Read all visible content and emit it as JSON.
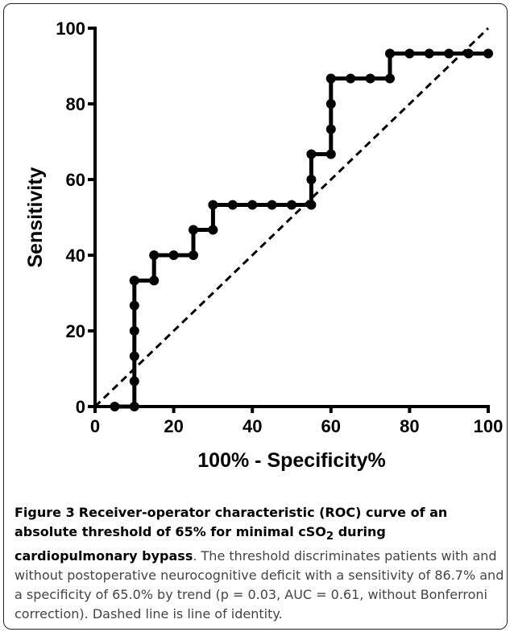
{
  "chart_data": {
    "type": "line",
    "title": "",
    "xlabel": "100% - Specificity%",
    "ylabel": "Sensitivity",
    "xlim": [
      0,
      100
    ],
    "ylim": [
      0,
      100
    ],
    "xticks": [
      "0",
      "20",
      "40",
      "60",
      "80",
      "100"
    ],
    "yticks": [
      "0",
      "20",
      "40",
      "60",
      "80",
      "100"
    ],
    "grid": false,
    "series": [
      {
        "name": "",
        "style": "step-with-markers",
        "color": "#000000",
        "x": [
          5,
          10,
          10,
          10,
          10,
          10,
          10,
          10,
          15,
          15,
          20,
          25,
          25,
          30,
          30,
          35,
          40,
          45,
          50,
          55,
          55,
          55,
          60,
          60,
          60,
          60,
          60,
          65,
          70,
          75,
          75,
          80,
          85,
          90,
          95,
          100
        ],
        "y": [
          0,
          0,
          6.7,
          13.3,
          20,
          26.7,
          33.3,
          33.3,
          33.3,
          40,
          40,
          40,
          46.7,
          46.7,
          53.3,
          53.3,
          53.3,
          53.3,
          53.3,
          53.3,
          60,
          66.7,
          66.7,
          73.3,
          80,
          86.7,
          86.7,
          86.7,
          86.7,
          86.7,
          93.3,
          93.3,
          93.3,
          93.3,
          93.3,
          93.3
        ]
      }
    ],
    "reference_line": {
      "style": "dashed",
      "from": [
        0,
        0
      ],
      "to": [
        100,
        100
      ]
    }
  },
  "caption": {
    "label": "Figure 3",
    "title_pre": "Receiver-operator characteristic (ROC) curve of an absolute threshold of 65% for minimal cSO",
    "title_sub": "2",
    "title_post": " during cardiopulmonary bypass",
    "text": ". The threshold discriminates patients with and without postoperative neurocognitive deficit with a sensitivity of 86.7% and a specificity of 65.0% by trend (p = 0.03, AUC = 0.61, without Bonferroni correction). Dashed line is line of identity."
  }
}
